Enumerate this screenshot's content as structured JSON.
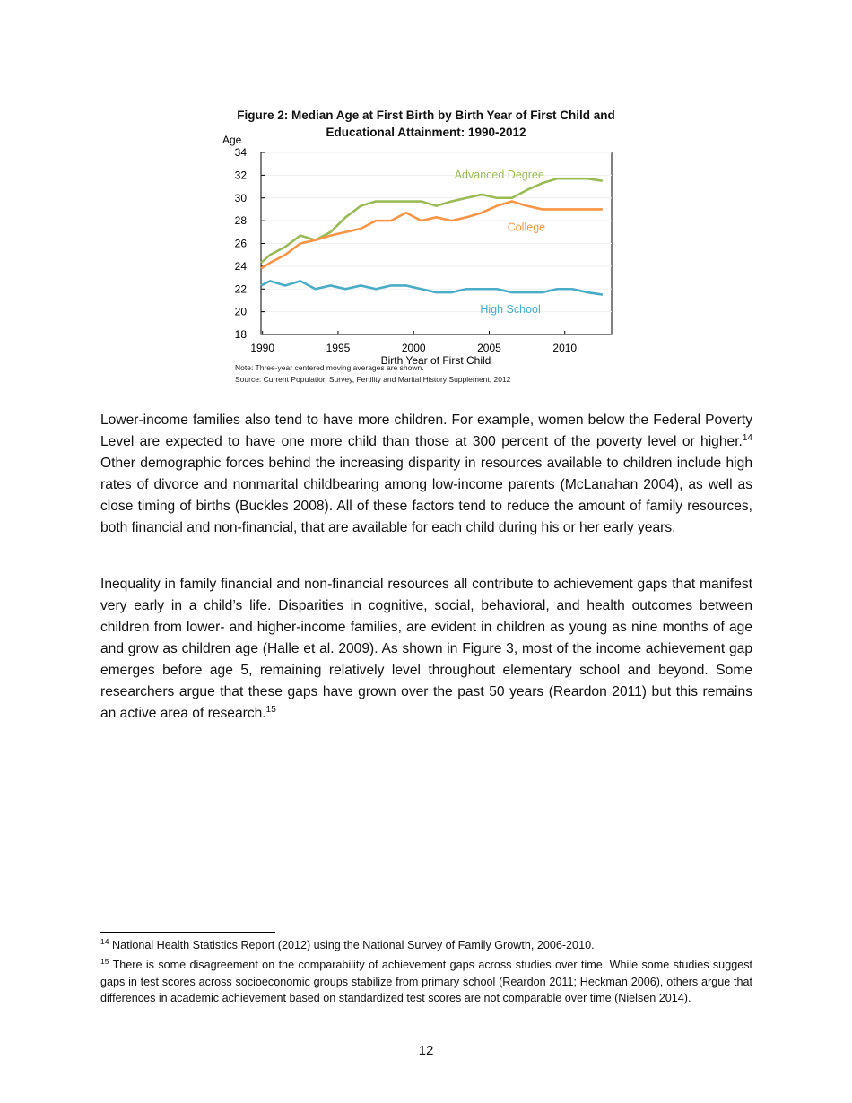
{
  "chart_data": {
    "type": "line",
    "title": "Figure 2: Median Age at First Birth by Birth Year of First Child and Educational Attainment: 1990-2012",
    "xlabel": "Birth Year of First Child",
    "ylabel": "Age",
    "xlim": [
      1989.9,
      2013.1
    ],
    "ylim": [
      18,
      34
    ],
    "xticks": [
      1990,
      1995,
      2000,
      2005,
      2010
    ],
    "yticks": [
      18,
      20,
      22,
      24,
      26,
      28,
      30,
      32,
      34
    ],
    "grid": true,
    "x": [
      1989.9,
      1990.5,
      1991.5,
      1992.5,
      1993.5,
      1994.5,
      1995.5,
      1996.5,
      1997.5,
      1998.5,
      1999.5,
      2000.5,
      2001.5,
      2002.5,
      2003.5,
      2004.5,
      2005.5,
      2006.5,
      2007.5,
      2008.5,
      2009.5,
      2010.5,
      2011.5,
      2012.5
    ],
    "series": [
      {
        "name": "Advanced Degree",
        "color": "#9bbb59",
        "label_pos": [
          2002.7,
          31.7
        ],
        "values": [
          24.3,
          25.0,
          25.7,
          26.7,
          26.3,
          27.0,
          28.3,
          29.3,
          29.7,
          29.7,
          29.7,
          29.7,
          29.3,
          29.7,
          30.0,
          30.3,
          30.0,
          30.0,
          30.7,
          31.3,
          31.7,
          31.7,
          31.7,
          31.5
        ]
      },
      {
        "name": "College",
        "color": "#f79646",
        "label_pos": [
          2006.2,
          27.1
        ],
        "values": [
          23.8,
          24.3,
          25.0,
          26.0,
          26.3,
          26.7,
          27.0,
          27.3,
          28.0,
          28.0,
          28.7,
          28.0,
          28.3,
          28.0,
          28.3,
          28.7,
          29.3,
          29.7,
          29.3,
          29.0,
          29.0,
          29.0,
          29.0,
          29.0
        ]
      },
      {
        "name": "High School",
        "color": "#4bacc6",
        "label_pos": [
          2004.4,
          19.9
        ],
        "values": [
          22.3,
          22.7,
          22.3,
          22.7,
          22.0,
          22.3,
          22.0,
          22.3,
          22.0,
          22.3,
          22.3,
          22.0,
          21.7,
          21.7,
          22.0,
          22.0,
          22.0,
          21.7,
          21.7,
          21.7,
          22.0,
          22.0,
          21.7,
          21.5
        ]
      }
    ],
    "note": "Note: Three-year centered moving averages are shown.",
    "source": "Source: Current Population Survey, Fertility and Marital History Supplement, 2012"
  },
  "paragraphs": [
    {
      "text": "Lower-income families also tend to have more children. For example, women below the Federal Poverty Level are expected to have one more child than those at 300 percent of the poverty level or higher.",
      "sup": "14",
      "after": " Other demographic forces behind the increasing disparity in resources available to children include high rates of divorce and nonmarital childbearing among low-income parents (McLanahan 2004), as well as close timing of births (Buckles 2008). All of these factors tend to reduce the amount of family resources, both financial and non-financial, that are available for each child during his or her early years."
    },
    {
      "text": "Inequality in family financial and non-financial resources all contribute to achievement gaps that manifest very early in a child’s life. Disparities in cognitive, social, behavioral, and health outcomes between children from lower- and higher-income families, are evident in children as young as nine months of age and grow as children age (Halle et al. 2009). As shown in Figure 3, most of the income achievement gap emerges before age 5, remaining relatively level throughout elementary school and beyond. Some researchers argue that these gaps have grown over the past 50 years (Reardon 2011) but this remains an active area of research.",
      "sup": "15",
      "after": ""
    }
  ],
  "footnotes": [
    {
      "num": "14",
      "text": " National Health Statistics Report (2012) using the National Survey of Family Growth, 2006-2010."
    },
    {
      "num": "15",
      "text": " There is some disagreement on the comparability of achievement gaps across studies over time. While some studies suggest gaps in test scores across socioeconomic groups stabilize from primary school (Reardon 2011; Heckman 2006), others argue that differences in academic achievement based on standardized test scores are not comparable over time (Nielsen 2014)."
    }
  ],
  "page_number": "12"
}
